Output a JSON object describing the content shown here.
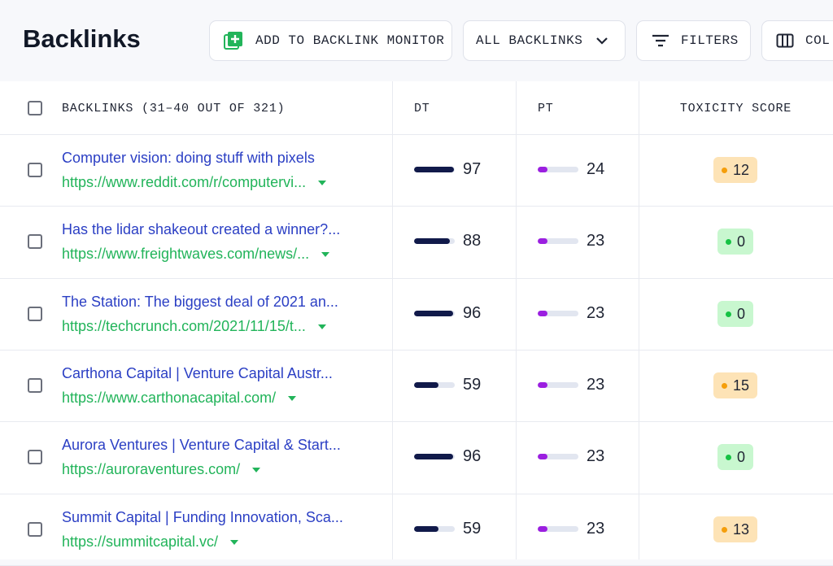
{
  "header": {
    "title": "Backlinks",
    "buttons": [
      "ADD TO BACKLINK MONITOR",
      "ALL BACKLINKS",
      "FILTERS",
      "COL"
    ]
  },
  "table": {
    "columns": [
      "BACKLINKS (31–40 OUT OF 321)",
      "DT",
      "PT",
      "TOXICITY SCORE"
    ],
    "rows": [
      {
        "title": "Computer vision: doing stuff with pixels",
        "url": "https://www.reddit.com/r/computervi...",
        "dt": 97,
        "pt": 24,
        "toxicity": 12
      },
      {
        "title": "Has the lidar shakeout created a winner?...",
        "url": "https://www.freightwaves.com/news/...",
        "dt": 88,
        "pt": 23,
        "toxicity": 0
      },
      {
        "title": "The Station: The biggest deal of 2021 an...",
        "url": "https://techcrunch.com/2021/11/15/t...",
        "dt": 96,
        "pt": 23,
        "toxicity": 0
      },
      {
        "title": "Carthona Capital | Venture Capital Austr...",
        "url": "https://www.carthonacapital.com/",
        "dt": 59,
        "pt": 23,
        "toxicity": 15
      },
      {
        "title": "Aurora Ventures | Venture Capital & Start...",
        "url": "https://auroraventures.com/",
        "dt": 96,
        "pt": 23,
        "toxicity": 0
      },
      {
        "title": "Summit Capital | Funding Innovation, Sca...",
        "url": "https://summitcapital.vc/",
        "dt": 59,
        "pt": 23,
        "toxicity": 13
      }
    ]
  }
}
